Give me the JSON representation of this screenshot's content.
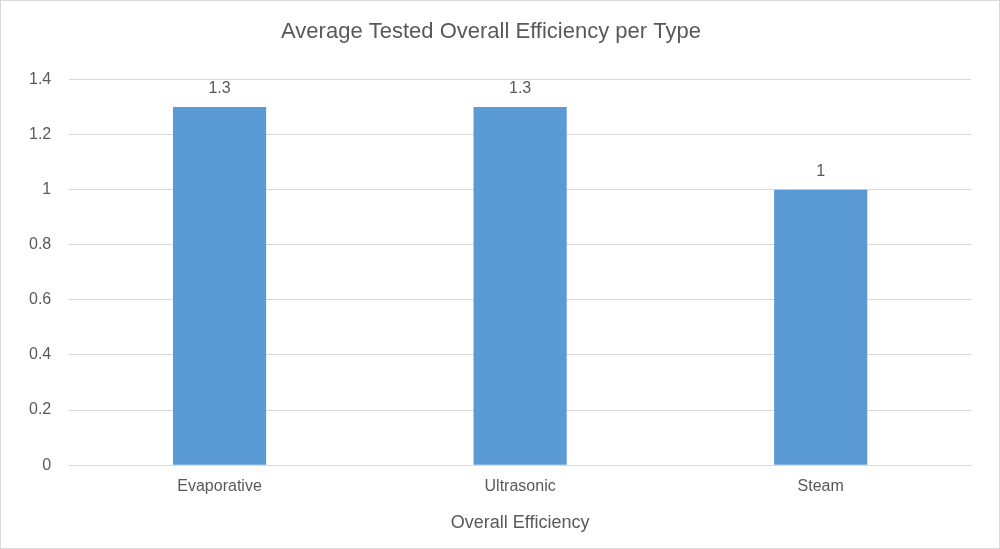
{
  "chart_data": {
    "type": "bar",
    "title": "Average Tested Overall Efficiency per Type",
    "x_label": "Overall Efficiency",
    "categories": [
      "Evaporative",
      "Ultrasonic",
      "Steam"
    ],
    "values": [
      1.3,
      1.3,
      1
    ],
    "color": "#5b9bd5",
    "ylim": [
      0,
      1.4
    ],
    "yticks": [
      0,
      0.2,
      0.4,
      0.6,
      0.8,
      1,
      1.2,
      1.4
    ],
    "grid": true,
    "data_labels": true
  }
}
